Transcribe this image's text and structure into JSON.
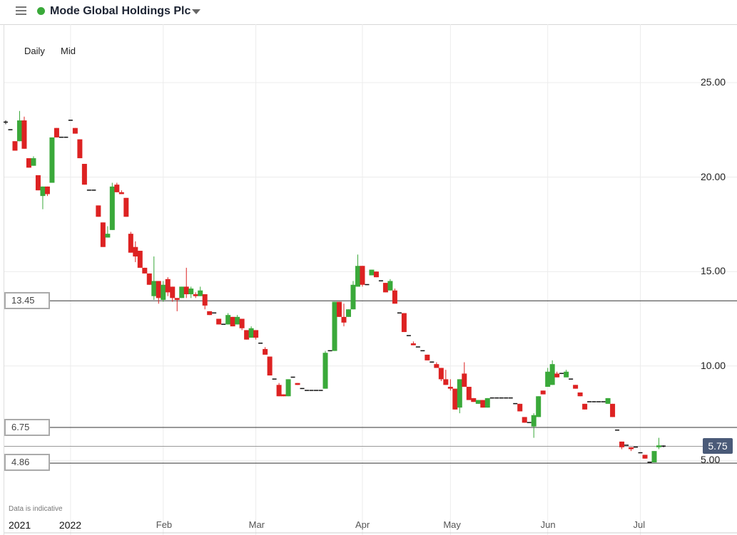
{
  "header": {
    "title": "Mode Global Holdings Plc",
    "menu_icon": "hamburger-icon",
    "status_color": "#3aa93a",
    "dropdown_icon": "caret-down-icon"
  },
  "options": {
    "interval": "Daily",
    "price_type": "Mid"
  },
  "note": "Data is indicative",
  "colors": {
    "up": "#3aa93a",
    "down": "#dd2222",
    "current_label": "#4a5a78"
  },
  "levels": [
    {
      "label": "13.45",
      "value": 13.45
    },
    {
      "label": "6.75",
      "value": 6.75
    },
    {
      "label": "4.86",
      "value": 4.86
    }
  ],
  "current_price": {
    "label": "5.75",
    "value": 5.75
  },
  "chart_data": {
    "type": "candlestick",
    "ylim": [
      2.3,
      27.9
    ],
    "yticks": [
      {
        "label": "25.00",
        "value": 25
      },
      {
        "label": "20.00",
        "value": 20
      },
      {
        "label": "15.00",
        "value": 15
      },
      {
        "label": "10.00",
        "value": 10
      },
      {
        "label": "5.00",
        "value": 5
      }
    ],
    "xticks": [
      {
        "label": "2021",
        "date": "2021-12-13",
        "year": true
      },
      {
        "label": "2022",
        "date": "2022-01-04",
        "year": true
      },
      {
        "label": "Feb",
        "date": "2022-02-01"
      },
      {
        "label": "Mar",
        "date": "2022-03-01"
      },
      {
        "label": "Apr",
        "date": "2022-04-01"
      },
      {
        "label": "May",
        "date": "2022-05-03"
      },
      {
        "label": "Jun",
        "date": "2022-06-01"
      },
      {
        "label": "Jul",
        "date": "2022-07-01"
      }
    ],
    "grid": true,
    "candles": [
      [
        "2021-12-10",
        22.9,
        23.0,
        22.8,
        22.9
      ],
      [
        "2021-12-13",
        22.5,
        22.5,
        22.5,
        22.5
      ],
      [
        "2021-12-14",
        21.9,
        21.9,
        21.4,
        21.4
      ],
      [
        "2021-12-15",
        21.9,
        23.5,
        21.9,
        23.0
      ],
      [
        "2021-12-16",
        23.0,
        23.2,
        21.5,
        21.5
      ],
      [
        "2021-12-17",
        21.0,
        21.0,
        20.5,
        20.5
      ],
      [
        "2021-12-20",
        20.6,
        21.1,
        20.6,
        21.0
      ],
      [
        "2021-12-21",
        20.1,
        20.1,
        19.3,
        19.3
      ],
      [
        "2021-12-22",
        19.0,
        19.5,
        18.3,
        19.5
      ],
      [
        "2021-12-23",
        19.5,
        19.5,
        19.0,
        19.1
      ],
      [
        "2021-12-24",
        19.7,
        22.1,
        19.7,
        22.1
      ],
      [
        "2021-12-29",
        22.6,
        22.6,
        22.1,
        22.1
      ],
      [
        "2021-12-30",
        22.1,
        22.1,
        22.1,
        22.1
      ],
      [
        "2021-12-31",
        22.1,
        22.1,
        22.1,
        22.1
      ],
      [
        "2022-01-04",
        23.0,
        23.0,
        23.0,
        23.0
      ],
      [
        "2022-01-05",
        22.6,
        22.6,
        22.3,
        22.3
      ],
      [
        "2022-01-06",
        22.0,
        22.0,
        21.0,
        21.0
      ],
      [
        "2022-01-07",
        20.7,
        20.7,
        19.6,
        19.6
      ],
      [
        "2022-01-10",
        19.3,
        19.3,
        19.3,
        19.3
      ],
      [
        "2022-01-11",
        19.3,
        19.3,
        19.3,
        19.3
      ],
      [
        "2022-01-12",
        18.5,
        18.5,
        17.9,
        17.9
      ],
      [
        "2022-01-13",
        17.6,
        17.6,
        16.3,
        16.3
      ],
      [
        "2022-01-14",
        16.8,
        17.4,
        16.8,
        17.0
      ],
      [
        "2022-01-17",
        17.2,
        19.7,
        17.2,
        19.5
      ],
      [
        "2022-01-18",
        19.6,
        19.7,
        19.2,
        19.2
      ],
      [
        "2022-01-19",
        19.2,
        19.3,
        19.1,
        19.1
      ],
      [
        "2022-01-20",
        18.9,
        18.9,
        17.9,
        17.9
      ],
      [
        "2022-01-21",
        17.0,
        17.1,
        16.0,
        16.0
      ],
      [
        "2022-01-24",
        16.3,
        16.6,
        15.5,
        15.8
      ],
      [
        "2022-01-25",
        16.1,
        16.1,
        15.2,
        15.2
      ],
      [
        "2022-01-26",
        15.2,
        15.2,
        14.9,
        14.9
      ],
      [
        "2022-01-27",
        14.9,
        14.9,
        14.3,
        14.3
      ],
      [
        "2022-01-28",
        13.7,
        15.8,
        13.5,
        14.5
      ],
      [
        "2022-01-31",
        14.5,
        14.5,
        13.3,
        13.6
      ],
      [
        "2022-02-01",
        13.5,
        14.5,
        13.4,
        14.3
      ],
      [
        "2022-02-02",
        14.6,
        14.7,
        13.7,
        13.9
      ],
      [
        "2022-02-03",
        14.2,
        14.2,
        13.4,
        13.6
      ],
      [
        "2022-02-04",
        13.6,
        13.6,
        12.9,
        13.5
      ],
      [
        "2022-02-07",
        13.6,
        14.2,
        13.6,
        14.2
      ],
      [
        "2022-02-08",
        14.2,
        15.2,
        13.6,
        13.8
      ],
      [
        "2022-02-09",
        13.8,
        14.2,
        13.6,
        14.1
      ],
      [
        "2022-02-10",
        13.8,
        13.9,
        13.6,
        13.7
      ],
      [
        "2022-02-11",
        13.7,
        14.2,
        13.7,
        14.0
      ],
      [
        "2022-02-14",
        13.8,
        13.8,
        13.0,
        13.2
      ],
      [
        "2022-02-15",
        12.9,
        12.9,
        12.7,
        12.7
      ],
      [
        "2022-02-16",
        12.8,
        12.8,
        12.8,
        12.8
      ],
      [
        "2022-02-17",
        12.5,
        12.5,
        12.2,
        12.2
      ],
      [
        "2022-02-18",
        12.2,
        12.2,
        12.2,
        12.2
      ],
      [
        "2022-02-21",
        12.2,
        12.8,
        12.2,
        12.7
      ],
      [
        "2022-02-22",
        12.6,
        12.6,
        12.1,
        12.1
      ],
      [
        "2022-02-23",
        12.2,
        12.7,
        12.2,
        12.6
      ],
      [
        "2022-02-24",
        12.5,
        12.5,
        11.9,
        12.0
      ],
      [
        "2022-02-25",
        11.9,
        11.9,
        11.4,
        11.4
      ],
      [
        "2022-02-28",
        11.5,
        12.1,
        11.5,
        12.0
      ],
      [
        "2022-03-01",
        11.9,
        11.9,
        11.4,
        11.5
      ],
      [
        "2022-03-02",
        11.2,
        11.2,
        11.2,
        11.2
      ],
      [
        "2022-03-03",
        10.9,
        11.0,
        10.6,
        10.6
      ],
      [
        "2022-03-04",
        10.5,
        10.5,
        9.5,
        9.5
      ],
      [
        "2022-03-07",
        9.3,
        9.3,
        9.3,
        9.3
      ],
      [
        "2022-03-08",
        9.0,
        9.1,
        8.4,
        8.4
      ],
      [
        "2022-03-09",
        8.5,
        8.5,
        8.4,
        8.4
      ],
      [
        "2022-03-10",
        8.4,
        9.3,
        8.4,
        9.3
      ],
      [
        "2022-03-11",
        9.4,
        9.4,
        9.4,
        9.4
      ],
      [
        "2022-03-14",
        9.1,
        9.1,
        9.0,
        9.0
      ],
      [
        "2022-03-15",
        8.8,
        8.8,
        8.8,
        8.8
      ],
      [
        "2022-03-16",
        8.7,
        8.7,
        8.7,
        8.7
      ],
      [
        "2022-03-17",
        8.7,
        8.7,
        8.7,
        8.7
      ],
      [
        "2022-03-18",
        8.7,
        8.7,
        8.7,
        8.7
      ],
      [
        "2022-03-21",
        8.7,
        8.7,
        8.7,
        8.7
      ],
      [
        "2022-03-22",
        8.8,
        10.8,
        8.8,
        10.7
      ],
      [
        "2022-03-23",
        10.8,
        10.8,
        10.8,
        10.8
      ],
      [
        "2022-03-24",
        10.8,
        13.4,
        10.8,
        13.4
      ],
      [
        "2022-03-25",
        13.4,
        13.4,
        12.6,
        12.6
      ],
      [
        "2022-03-28",
        12.6,
        13.3,
        12.1,
        12.3
      ],
      [
        "2022-03-29",
        12.6,
        13.0,
        12.6,
        13.0
      ],
      [
        "2022-03-30",
        13.0,
        14.5,
        13.0,
        14.3
      ],
      [
        "2022-03-31",
        14.2,
        15.9,
        14.2,
        15.3
      ],
      [
        "2022-04-01",
        15.3,
        15.3,
        14.2,
        14.3
      ],
      [
        "2022-04-04",
        14.3,
        14.3,
        14.3,
        14.3
      ],
      [
        "2022-04-05",
        14.8,
        15.1,
        14.8,
        15.1
      ],
      [
        "2022-04-06",
        15.0,
        15.0,
        14.7,
        14.7
      ],
      [
        "2022-04-07",
        14.5,
        14.5,
        14.5,
        14.5
      ],
      [
        "2022-04-08",
        14.4,
        14.4,
        13.9,
        13.9
      ],
      [
        "2022-04-11",
        14.0,
        14.6,
        14.0,
        14.5
      ],
      [
        "2022-04-12",
        14.0,
        14.1,
        13.3,
        13.3
      ],
      [
        "2022-04-13",
        12.8,
        12.8,
        12.8,
        12.8
      ],
      [
        "2022-04-14",
        12.8,
        12.8,
        11.8,
        11.8
      ],
      [
        "2022-04-19",
        11.6,
        11.6,
        11.6,
        11.6
      ],
      [
        "2022-04-20",
        11.2,
        11.3,
        11.1,
        11.1
      ],
      [
        "2022-04-21",
        11.0,
        11.0,
        11.0,
        11.0
      ],
      [
        "2022-04-22",
        10.8,
        10.8,
        10.8,
        10.8
      ],
      [
        "2022-04-25",
        10.6,
        10.6,
        10.3,
        10.3
      ],
      [
        "2022-04-26",
        10.2,
        10.2,
        10.2,
        10.2
      ],
      [
        "2022-04-27",
        10.1,
        10.2,
        9.9,
        9.9
      ],
      [
        "2022-04-28",
        9.9,
        9.9,
        9.2,
        9.3
      ],
      [
        "2022-04-29",
        9.3,
        9.8,
        9.0,
        9.0
      ],
      [
        "2022-05-03",
        8.9,
        9.3,
        8.7,
        8.8
      ],
      [
        "2022-05-04",
        8.8,
        8.8,
        7.7,
        7.7
      ],
      [
        "2022-05-05",
        7.8,
        9.3,
        7.5,
        9.3
      ],
      [
        "2022-05-06",
        9.6,
        10.2,
        8.9,
        8.9
      ],
      [
        "2022-05-09",
        8.9,
        8.9,
        8.2,
        8.2
      ],
      [
        "2022-05-10",
        8.3,
        8.3,
        8.1,
        8.1
      ],
      [
        "2022-05-11",
        8.0,
        8.2,
        8.0,
        8.2
      ],
      [
        "2022-05-12",
        8.2,
        8.2,
        7.8,
        7.8
      ],
      [
        "2022-05-13",
        7.8,
        8.3,
        7.8,
        8.3
      ],
      [
        "2022-05-16",
        8.3,
        8.3,
        8.3,
        8.3
      ],
      [
        "2022-05-17",
        8.3,
        8.3,
        8.3,
        8.3
      ],
      [
        "2022-05-18",
        8.3,
        8.3,
        8.3,
        8.3
      ],
      [
        "2022-05-19",
        8.3,
        8.3,
        8.3,
        8.3
      ],
      [
        "2022-05-20",
        8.3,
        8.3,
        8.3,
        8.3
      ],
      [
        "2022-05-23",
        8.0,
        8.0,
        8.0,
        8.0
      ],
      [
        "2022-05-24",
        8.0,
        8.0,
        7.6,
        7.6
      ],
      [
        "2022-05-25",
        7.3,
        7.3,
        7.0,
        7.0
      ],
      [
        "2022-05-26",
        7.0,
        7.0,
        7.0,
        7.0
      ],
      [
        "2022-05-27",
        6.8,
        7.5,
        6.2,
        7.4
      ],
      [
        "2022-05-30",
        7.3,
        8.4,
        7.3,
        8.4
      ],
      [
        "2022-05-31",
        8.7,
        8.7,
        8.5,
        8.5
      ],
      [
        "2022-06-01",
        8.9,
        9.9,
        8.9,
        9.7
      ],
      [
        "2022-06-06",
        9.0,
        10.3,
        9.0,
        10.1
      ],
      [
        "2022-06-07",
        9.6,
        9.7,
        9.4,
        9.4
      ],
      [
        "2022-06-08",
        9.6,
        9.6,
        9.6,
        9.6
      ],
      [
        "2022-06-09",
        9.4,
        9.8,
        9.4,
        9.7
      ],
      [
        "2022-06-10",
        9.3,
        9.3,
        9.3,
        9.3
      ],
      [
        "2022-06-13",
        9.0,
        9.0,
        8.8,
        8.8
      ],
      [
        "2022-06-14",
        8.6,
        8.6,
        8.4,
        8.4
      ],
      [
        "2022-06-15",
        8.0,
        8.0,
        7.7,
        7.7
      ],
      [
        "2022-06-16",
        8.1,
        8.1,
        8.1,
        8.1
      ],
      [
        "2022-06-17",
        8.1,
        8.1,
        8.1,
        8.1
      ],
      [
        "2022-06-20",
        8.1,
        8.1,
        8.1,
        8.1
      ],
      [
        "2022-06-21",
        8.1,
        8.1,
        8.1,
        8.1
      ],
      [
        "2022-06-22",
        8.0,
        8.3,
        8.0,
        8.3
      ],
      [
        "2022-06-23",
        8.0,
        8.0,
        7.3,
        7.3
      ],
      [
        "2022-06-24",
        6.6,
        6.6,
        6.6,
        6.6
      ],
      [
        "2022-06-27",
        6.0,
        6.0,
        5.6,
        5.7
      ],
      [
        "2022-06-28",
        5.8,
        5.8,
        5.8,
        5.8
      ],
      [
        "2022-06-29",
        5.7,
        5.7,
        5.5,
        5.6
      ],
      [
        "2022-06-30",
        5.7,
        5.7,
        5.7,
        5.7
      ],
      [
        "2022-07-01",
        5.4,
        5.4,
        5.4,
        5.4
      ],
      [
        "2022-07-04",
        5.3,
        5.3,
        5.1,
        5.1
      ],
      [
        "2022-07-05",
        4.9,
        4.9,
        4.9,
        4.9
      ],
      [
        "2022-07-06",
        4.9,
        5.5,
        4.9,
        5.5
      ],
      [
        "2022-07-07",
        5.7,
        6.2,
        5.6,
        5.8
      ],
      [
        "2022-07-08",
        5.8,
        5.8,
        5.7,
        5.75
      ]
    ]
  }
}
